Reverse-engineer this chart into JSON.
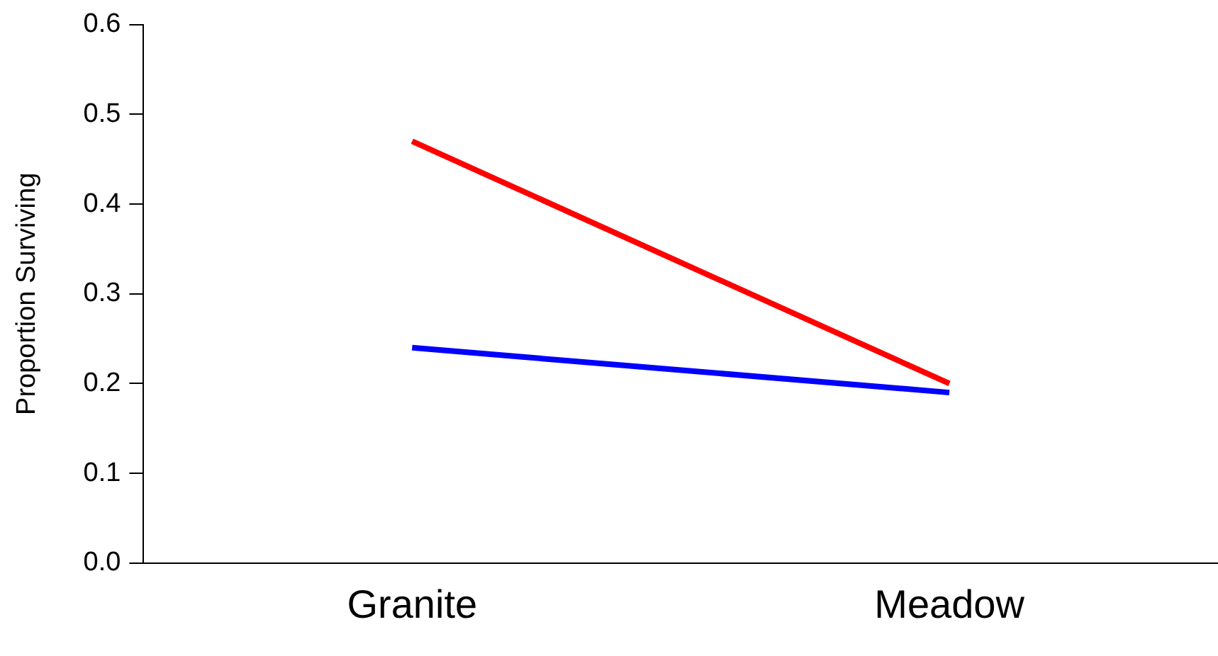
{
  "chart_data": {
    "type": "line",
    "ylabel": "Proportion Surviving",
    "categories": [
      "Granite",
      "Meadow"
    ],
    "series": [
      {
        "color": "#ff0000",
        "values": [
          0.47,
          0.2
        ]
      },
      {
        "color": "#0000ff",
        "values": [
          0.24,
          0.19
        ]
      }
    ],
    "ylim": [
      0,
      0.6
    ],
    "yticks": [
      {
        "value": 0,
        "label": "0.0"
      },
      {
        "value": 0.1,
        "label": "0.1"
      },
      {
        "value": 0.2,
        "label": "0.2"
      },
      {
        "value": 0.3,
        "label": "0.3"
      },
      {
        "value": 0.4,
        "label": "0.4"
      },
      {
        "value": 0.5,
        "label": "0.5"
      },
      {
        "value": 0.6,
        "label": "0.6"
      }
    ],
    "grid": false,
    "legend": false,
    "marker": "none",
    "line_style": "solid"
  }
}
